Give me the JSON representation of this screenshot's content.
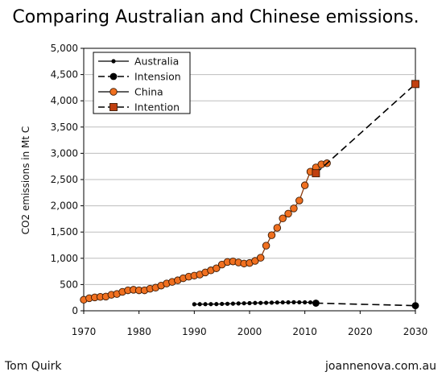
{
  "chart_data": {
    "type": "line",
    "title": "Comparing Australian and Chinese emissions.",
    "xlabel": "",
    "ylabel": "CO2 emissions in Mt C",
    "xlim": [
      1970,
      2030
    ],
    "ylim": [
      0,
      5000
    ],
    "x_ticks": [
      1970,
      1980,
      1990,
      2000,
      2010,
      2020,
      2030
    ],
    "y_ticks": [
      0,
      500,
      1000,
      1500,
      2000,
      2500,
      3000,
      3500,
      4000,
      4500,
      5000
    ],
    "y_tick_labels": [
      "0",
      "500",
      "1,000",
      "1,500",
      "2,000",
      "2,500",
      "3,000",
      "3,500",
      "4,000",
      "4,500",
      "5,000"
    ],
    "grid": "horizontal",
    "legend_position": "top-left",
    "series": [
      {
        "name": "Australia",
        "color": "#000000",
        "style": "solid-small-dot",
        "x": [
          1990,
          1991,
          1992,
          1993,
          1994,
          1995,
          1996,
          1997,
          1998,
          1999,
          2000,
          2001,
          2002,
          2003,
          2004,
          2005,
          2006,
          2007,
          2008,
          2009,
          2010,
          2011,
          2012
        ],
        "y": [
          125,
          126,
          126,
          127,
          128,
          131,
          133,
          136,
          140,
          143,
          146,
          149,
          150,
          152,
          155,
          158,
          160,
          161,
          163,
          162,
          161,
          160,
          158
        ]
      },
      {
        "name": "Intension",
        "color": "#000000",
        "style": "dashed-large-dot",
        "x": [
          2012,
          2030
        ],
        "y": [
          145,
          98
        ]
      },
      {
        "name": "China",
        "color": "#f07020",
        "style": "solid-orange-dot",
        "x": [
          1970,
          1971,
          1972,
          1973,
          1974,
          1975,
          1976,
          1977,
          1978,
          1979,
          1980,
          1981,
          1982,
          1983,
          1984,
          1985,
          1986,
          1987,
          1988,
          1989,
          1990,
          1991,
          1992,
          1993,
          1994,
          1995,
          1996,
          1997,
          1998,
          1999,
          2000,
          2001,
          2002,
          2003,
          2004,
          2005,
          2006,
          2007,
          2008,
          2009,
          2010,
          2011,
          2012,
          2013,
          2014
        ],
        "y": [
          210,
          240,
          255,
          265,
          270,
          305,
          320,
          360,
          390,
          400,
          390,
          390,
          420,
          440,
          480,
          520,
          550,
          580,
          620,
          650,
          670,
          690,
          730,
          770,
          810,
          880,
          930,
          940,
          920,
          900,
          910,
          950,
          1010,
          1240,
          1440,
          1580,
          1760,
          1850,
          1950,
          2100,
          2390,
          2650,
          2730,
          2790,
          2810
        ]
      },
      {
        "name": "Intention",
        "color": "#c04010",
        "style": "dashed-square-marker",
        "x": [
          2012,
          2030
        ],
        "y": [
          2620,
          4320
        ]
      }
    ]
  },
  "credits": {
    "left": "Tom Quirk",
    "right": "joannenova.com.au"
  }
}
